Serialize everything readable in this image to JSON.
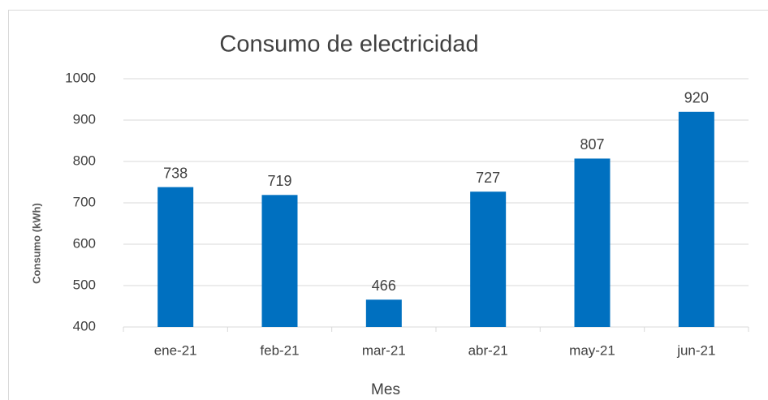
{
  "chart_data": {
    "type": "bar",
    "title": "Consumo de electricidad",
    "x_label": "Mes",
    "y_label": "Consumo (kWh)",
    "categories": [
      "ene-21",
      "feb-21",
      "mar-21",
      "abr-21",
      "may-21",
      "jun-21"
    ],
    "values": [
      738,
      719,
      466,
      727,
      807,
      920
    ],
    "color": "#0070c0",
    "ylim": [
      400,
      1000
    ],
    "yticks": [
      400,
      500,
      600,
      700,
      800,
      900,
      1000
    ],
    "grid": true
  }
}
